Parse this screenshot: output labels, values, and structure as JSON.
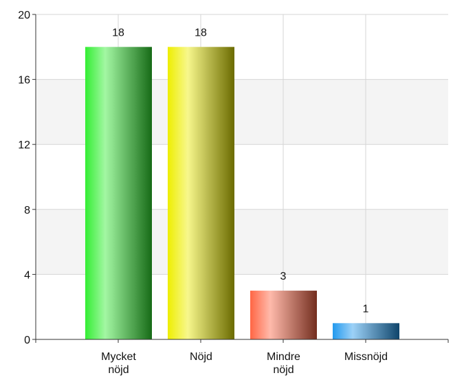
{
  "chart_data": {
    "type": "bar",
    "categories": [
      "Mycket nöjd",
      "Nöjd",
      "Mindre nöjd",
      "Missnöjd"
    ],
    "values": [
      18,
      18,
      3,
      1
    ],
    "colors": [
      "#33ee33",
      "#eeee00",
      "#ff6644",
      "#2299ee"
    ],
    "ylim": [
      0,
      20
    ],
    "yticks": [
      0,
      4,
      8,
      12,
      16,
      20
    ],
    "grid": true
  }
}
